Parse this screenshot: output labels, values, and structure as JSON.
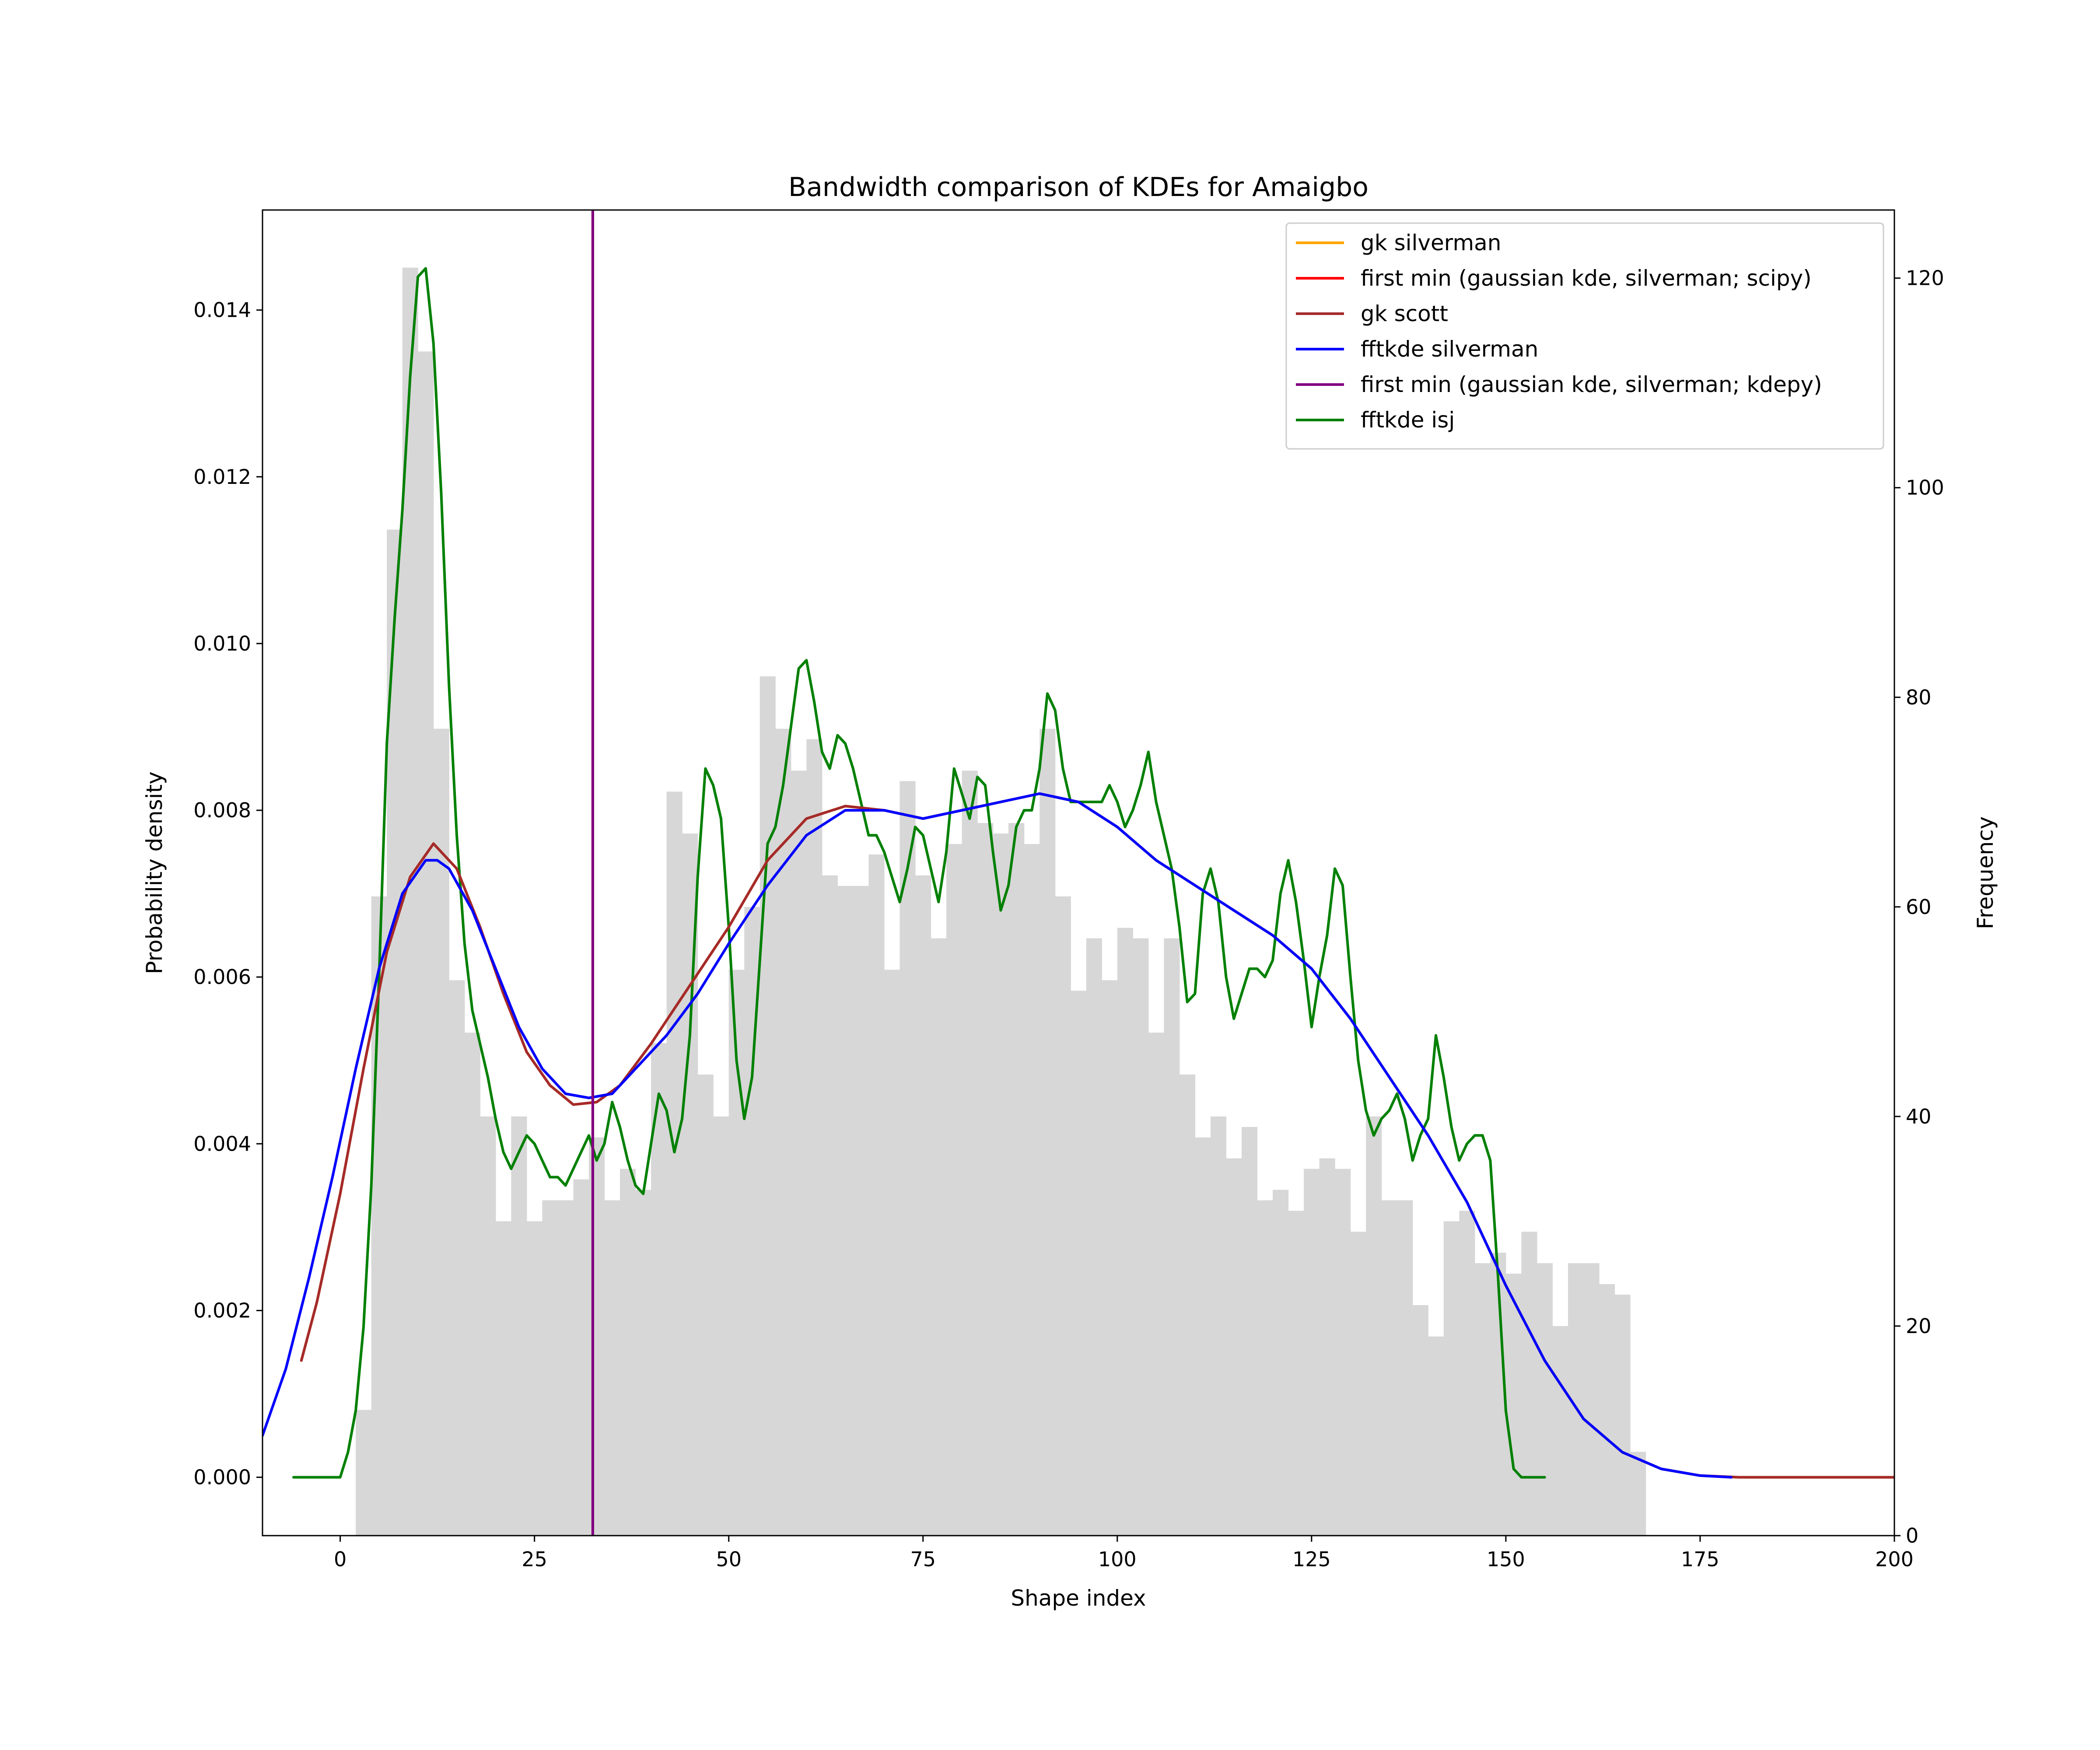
{
  "chart_data": {
    "type": "histogram+line",
    "title": "Bandwidth comparison of KDEs for Amaigbo",
    "xlabel": "Shape index",
    "ylabel": "Probability density",
    "y2label": "Frequency",
    "xlim": [
      -10,
      200
    ],
    "ylim": [
      -0.0007,
      0.0152
    ],
    "y2lim": [
      0,
      126.5
    ],
    "xticks": [
      0,
      25,
      50,
      75,
      100,
      125,
      150,
      175,
      200
    ],
    "yticks": [
      0.0,
      0.002,
      0.004,
      0.006,
      0.008,
      0.01,
      0.012,
      0.014
    ],
    "ytick_labels": [
      "0.000",
      "0.002",
      "0.004",
      "0.006",
      "0.008",
      "0.010",
      "0.012",
      "0.014"
    ],
    "y2ticks": [
      0,
      20,
      40,
      60,
      80,
      100,
      120
    ],
    "legend_position": "top-right",
    "histogram": {
      "color": "#d7d7d7",
      "bin_start": 2,
      "bin_width": 2,
      "frequencies": [
        12,
        61,
        96,
        121,
        113,
        77,
        53,
        48,
        40,
        30,
        40,
        30,
        32,
        32,
        34,
        38,
        32,
        35,
        33,
        47,
        71,
        67,
        44,
        40,
        54,
        60,
        82,
        77,
        73,
        76,
        63,
        62,
        62,
        65,
        54,
        72,
        63,
        57,
        66,
        73,
        68,
        67,
        68,
        66,
        77,
        61,
        52,
        57,
        53,
        58,
        57,
        48,
        57,
        44,
        38,
        40,
        36,
        39,
        32,
        33,
        31,
        35,
        36,
        35,
        29,
        40,
        32,
        32,
        22,
        19,
        30,
        31,
        26,
        27,
        25,
        29,
        26,
        20,
        26,
        26,
        24,
        23,
        8
      ]
    },
    "series": [
      {
        "name": "gk silverman",
        "color": "#ffa500",
        "x": [
          -5,
          -3,
          0,
          3,
          6,
          9,
          12,
          15,
          18,
          21,
          24,
          27,
          30,
          33,
          36,
          40,
          45,
          50,
          55,
          60,
          65,
          70,
          75,
          80,
          85,
          90,
          95,
          100,
          105,
          110,
          115,
          120,
          125,
          130,
          135,
          140,
          145,
          150,
          155,
          160,
          165,
          170,
          175,
          180,
          190,
          200
        ],
        "y": [
          0.0014,
          0.0021,
          0.0034,
          0.0049,
          0.0063,
          0.0072,
          0.0076,
          0.0073,
          0.0066,
          0.0058,
          0.0051,
          0.0047,
          0.00447,
          0.0045,
          0.0047,
          0.0052,
          0.0059,
          0.0066,
          0.0074,
          0.0079,
          0.00805,
          0.008,
          0.0079,
          0.008,
          0.0081,
          0.0082,
          0.0081,
          0.0078,
          0.0074,
          0.0071,
          0.0068,
          0.0065,
          0.0061,
          0.0055,
          0.0048,
          0.0041,
          0.0033,
          0.0023,
          0.0014,
          0.0007,
          0.0003,
          0.0001,
          2e-05,
          0.0,
          0.0,
          0.0
        ]
      },
      {
        "name": "first min (gaussian kde, silverman; scipy)",
        "color": "#ff0000",
        "x": [
          32.5,
          32.5
        ],
        "y": [
          -0.0007,
          0.0152
        ]
      },
      {
        "name": "gk scott",
        "color": "#a52a2a",
        "x": [
          -5,
          -3,
          0,
          3,
          6,
          9,
          12,
          15,
          18,
          21,
          24,
          27,
          30,
          33,
          36,
          40,
          45,
          50,
          55,
          60,
          65,
          70,
          75,
          80,
          85,
          90,
          95,
          100,
          105,
          110,
          115,
          120,
          125,
          130,
          135,
          140,
          145,
          150,
          155,
          160,
          165,
          170,
          175,
          180,
          190,
          200
        ],
        "y": [
          0.0014,
          0.0021,
          0.0034,
          0.0049,
          0.0063,
          0.0072,
          0.0076,
          0.0073,
          0.0066,
          0.0058,
          0.0051,
          0.0047,
          0.00447,
          0.0045,
          0.0047,
          0.0052,
          0.0059,
          0.0066,
          0.0074,
          0.0079,
          0.00805,
          0.008,
          0.0079,
          0.008,
          0.0081,
          0.0082,
          0.0081,
          0.0078,
          0.0074,
          0.0071,
          0.0068,
          0.0065,
          0.0061,
          0.0055,
          0.0048,
          0.0041,
          0.0033,
          0.0023,
          0.0014,
          0.0007,
          0.0003,
          0.0001,
          2e-05,
          0.0,
          0.0,
          0.0
        ]
      },
      {
        "name": "fftkde silverman",
        "color": "#0000ff",
        "x": [
          -10,
          -7,
          -4,
          -1,
          2,
          5,
          8,
          11,
          12.5,
          14,
          17,
          20,
          23,
          26,
          29,
          32,
          35,
          38,
          42,
          46,
          50,
          55,
          60,
          65,
          70,
          75,
          80,
          85,
          90,
          95,
          100,
          105,
          110,
          115,
          120,
          125,
          130,
          135,
          140,
          145,
          150,
          155,
          160,
          165,
          170,
          175,
          179
        ],
        "y": [
          0.0005,
          0.0013,
          0.0024,
          0.0036,
          0.0049,
          0.0061,
          0.007,
          0.0074,
          0.0074,
          0.0073,
          0.0068,
          0.0061,
          0.0054,
          0.0049,
          0.0046,
          0.00455,
          0.0046,
          0.0049,
          0.0053,
          0.0058,
          0.0064,
          0.0071,
          0.0077,
          0.008,
          0.008,
          0.0079,
          0.008,
          0.0081,
          0.0082,
          0.0081,
          0.0078,
          0.0074,
          0.0071,
          0.0068,
          0.0065,
          0.0061,
          0.0055,
          0.0048,
          0.0041,
          0.0033,
          0.0023,
          0.0014,
          0.0007,
          0.0003,
          0.0001,
          2e-05,
          0.0
        ]
      },
      {
        "name": "first min (gaussian kde, silverman; kdepy)",
        "color": "#800080",
        "x": [
          32.5,
          32.5
        ],
        "y": [
          -0.0007,
          0.0152
        ]
      },
      {
        "name": "fftkde isj",
        "color": "#008000",
        "x": [
          -6,
          0,
          1,
          2,
          3,
          4,
          5,
          6,
          7,
          8,
          9,
          10,
          11,
          12,
          13,
          14,
          15,
          16,
          17,
          18,
          19,
          20,
          21,
          22,
          23,
          24,
          25,
          26,
          27,
          28,
          29,
          30,
          31,
          32,
          33,
          34,
          35,
          36,
          37,
          38,
          39,
          40,
          41,
          42,
          43,
          44,
          45,
          46,
          47,
          48,
          49,
          50,
          51,
          52,
          53,
          54,
          55,
          56,
          57,
          58,
          59,
          60,
          61,
          62,
          63,
          64,
          65,
          66,
          67,
          68,
          69,
          70,
          71,
          72,
          73,
          74,
          75,
          76,
          77,
          78,
          79,
          80,
          81,
          82,
          83,
          84,
          85,
          86,
          87,
          88,
          89,
          90,
          91,
          92,
          93,
          94,
          95,
          96,
          97,
          98,
          99,
          100,
          101,
          102,
          103,
          104,
          105,
          106,
          107,
          108,
          109,
          110,
          111,
          112,
          113,
          114,
          115,
          116,
          117,
          118,
          119,
          120,
          121,
          122,
          123,
          124,
          125,
          126,
          127,
          128,
          129,
          130,
          131,
          132,
          133,
          134,
          135,
          136,
          137,
          138,
          139,
          140,
          141,
          142,
          143,
          144,
          145,
          146,
          147,
          148,
          149,
          150,
          151,
          152,
          153,
          154,
          155,
          157
        ],
        "y": [
          0.0,
          0.0,
          0.0003,
          0.0008,
          0.0018,
          0.0035,
          0.006,
          0.0088,
          0.0103,
          0.0116,
          0.0132,
          0.0144,
          0.0145,
          0.0136,
          0.0118,
          0.0095,
          0.0077,
          0.0064,
          0.0056,
          0.0052,
          0.0048,
          0.0043,
          0.0039,
          0.0037,
          0.0039,
          0.0041,
          0.004,
          0.0038,
          0.0036,
          0.0036,
          0.0035,
          0.0037,
          0.0039,
          0.0041,
          0.0038,
          0.004,
          0.0045,
          0.0042,
          0.0038,
          0.0035,
          0.0034,
          0.004,
          0.0046,
          0.0044,
          0.0039,
          0.0043,
          0.0053,
          0.0072,
          0.0085,
          0.0083,
          0.0079,
          0.0066,
          0.005,
          0.0043,
          0.0048,
          0.0062,
          0.0076,
          0.0078,
          0.0083,
          0.009,
          0.0097,
          0.0098,
          0.0093,
          0.0087,
          0.0085,
          0.0089,
          0.0088,
          0.0085,
          0.0081,
          0.0077,
          0.0077,
          0.0075,
          0.0072,
          0.0069,
          0.0073,
          0.0078,
          0.0077,
          0.0073,
          0.0069,
          0.0075,
          0.0085,
          0.0082,
          0.0079,
          0.0084,
          0.0083,
          0.0075,
          0.0068,
          0.0071,
          0.0078,
          0.008,
          0.008,
          0.0085,
          0.0094,
          0.0092,
          0.0085,
          0.0081,
          0.0081,
          0.0081,
          0.0081,
          0.0081,
          0.0083,
          0.0081,
          0.0078,
          0.008,
          0.0083,
          0.0087,
          0.0081,
          0.0077,
          0.0073,
          0.0066,
          0.0057,
          0.0058,
          0.007,
          0.0073,
          0.0069,
          0.006,
          0.0055,
          0.0058,
          0.0061,
          0.0061,
          0.006,
          0.0062,
          0.007,
          0.0074,
          0.0069,
          0.0062,
          0.0054,
          0.006,
          0.0065,
          0.0073,
          0.0071,
          0.006,
          0.005,
          0.0044,
          0.0041,
          0.0043,
          0.0044,
          0.0046,
          0.0043,
          0.0038,
          0.0041,
          0.0043,
          0.0053,
          0.0048,
          0.0042,
          0.0038,
          0.004,
          0.0041,
          0.0041,
          0.0038,
          0.0024,
          0.0008,
          0.0001,
          0.0,
          0.0,
          0.0,
          0.0
        ]
      }
    ]
  }
}
